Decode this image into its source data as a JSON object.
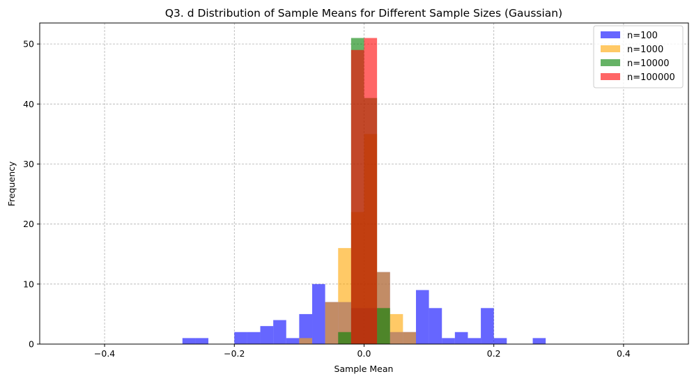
{
  "chart_data": {
    "type": "bar",
    "subtype": "overlapping-histogram",
    "title": "Q3. d Distribution of Sample Means for Different Sample Sizes (Gaussian)",
    "xlabel": "Sample Mean",
    "ylabel": "Frequency",
    "xlim": [
      -0.5,
      0.5
    ],
    "ylim": [
      0,
      53.5
    ],
    "xticks": [
      -0.4,
      -0.2,
      0.0,
      0.2,
      0.4
    ],
    "xtick_labels": [
      "−0.4",
      "−0.2",
      "0.0",
      "0.2",
      "0.4"
    ],
    "yticks": [
      0,
      10,
      20,
      30,
      40,
      50
    ],
    "ytick_labels": [
      "0",
      "10",
      "20",
      "30",
      "40",
      "50"
    ],
    "grid": true,
    "legend_position": "top-right",
    "bin_edges": [
      -0.28,
      -0.26,
      -0.24,
      -0.22,
      -0.2,
      -0.18,
      -0.16,
      -0.14,
      -0.12,
      -0.1,
      -0.08,
      -0.06,
      -0.04,
      -0.02,
      0.0,
      0.02,
      0.04,
      0.06,
      0.08,
      0.1,
      0.12,
      0.14,
      0.16,
      0.18,
      0.2,
      0.22,
      0.24,
      0.26,
      0.28
    ],
    "series": [
      {
        "name": "n=100",
        "color": "#0000ff",
        "opacity": 0.6,
        "values": [
          1,
          1,
          0,
          0,
          2,
          2,
          3,
          4,
          1,
          5,
          10,
          7,
          7,
          6,
          6,
          12,
          2,
          2,
          9,
          6,
          1,
          2,
          1,
          6,
          1,
          0,
          0,
          1
        ]
      },
      {
        "name": "n=1000",
        "color": "#ffa500",
        "opacity": 0.6,
        "values": [
          0,
          0,
          0,
          0,
          0,
          0,
          0,
          0,
          0,
          1,
          0,
          7,
          16,
          22,
          35,
          12,
          5,
          2,
          0,
          0,
          0,
          0,
          0,
          0,
          0,
          0,
          0,
          0
        ]
      },
      {
        "name": "n=10000",
        "color": "#008000",
        "opacity": 0.6,
        "values": [
          0,
          0,
          0,
          0,
          0,
          0,
          0,
          0,
          0,
          0,
          0,
          0,
          2,
          51,
          41,
          6,
          0,
          0,
          0,
          0,
          0,
          0,
          0,
          0,
          0,
          0,
          0,
          0
        ]
      },
      {
        "name": "n=100000",
        "color": "#ff0000",
        "opacity": 0.6,
        "values": [
          0,
          0,
          0,
          0,
          0,
          0,
          0,
          0,
          0,
          0,
          0,
          0,
          0,
          49,
          51,
          0,
          0,
          0,
          0,
          0,
          0,
          0,
          0,
          0,
          0,
          0,
          0,
          0
        ]
      }
    ]
  }
}
